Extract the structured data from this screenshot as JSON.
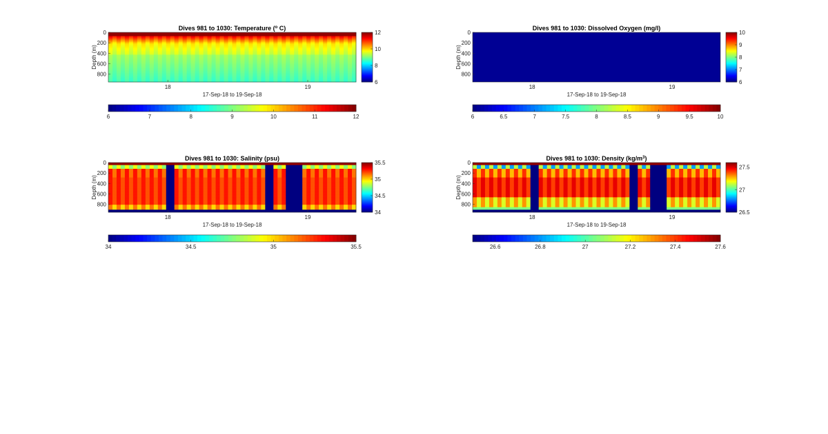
{
  "chart_data": [
    {
      "type": "heatmap",
      "title": "Dives 981 to 1030: Temperature (",
      "title_sup": "o",
      "title_end": " C)",
      "ylabel": "Depth (m)",
      "xlabel": "17-Sep-18 to 19-Sep-18",
      "x_ticks": [
        "18",
        "19"
      ],
      "y_ticks": [
        0,
        200,
        400,
        600,
        800
      ],
      "ylim": [
        0,
        950
      ],
      "colorbar_ticks": [
        6,
        8,
        10,
        12
      ],
      "hbar_ticks": [
        "6",
        "7",
        "8",
        "9",
        "10",
        "11",
        "12"
      ],
      "clim": [
        6,
        12
      ],
      "colormap": "jet",
      "columns": 52
    },
    {
      "type": "heatmap",
      "title": "Dives 981 to 1030: Dissolved Oxygen (mg/l)",
      "ylabel": "Depth (m)",
      "xlabel": "17-Sep-18 to 19-Sep-18",
      "x_ticks": [
        "18",
        "19"
      ],
      "y_ticks": [
        0,
        200,
        400,
        600,
        800
      ],
      "ylim": [
        0,
        950
      ],
      "colorbar_ticks": [
        6,
        7,
        8,
        9,
        10
      ],
      "hbar_ticks": [
        "6",
        "6.5",
        "7",
        "7.5",
        "8",
        "8.5",
        "9",
        "9.5",
        "10"
      ],
      "clim": [
        6,
        10
      ],
      "colormap": "jet",
      "fill_value": 6
    },
    {
      "type": "heatmap",
      "title": "Dives 981 to 1030: Salinity (psu)",
      "ylabel": "Depth (m)",
      "xlabel": "17-Sep-18 to 19-Sep-18",
      "x_ticks": [
        "18",
        "19"
      ],
      "y_ticks": [
        0,
        200,
        400,
        600,
        800
      ],
      "ylim": [
        0,
        950
      ],
      "colorbar_ticks": [
        34,
        34.5,
        35,
        35.5
      ],
      "hbar_ticks": [
        "34",
        "34.5",
        "35",
        "35.5"
      ],
      "clim": [
        34,
        35.5
      ],
      "colormap": "jet",
      "gap_columns": [
        12,
        33,
        37,
        39
      ]
    },
    {
      "type": "heatmap",
      "title": "Dives 981 to 1030: Density (kg/m",
      "title_sup": "3",
      "title_end": ")",
      "ylabel": "Depth (m)",
      "xlabel": "17-Sep-18 to 19-Sep-18",
      "x_ticks": [
        "18",
        "19"
      ],
      "y_ticks": [
        0,
        200,
        400,
        600,
        800
      ],
      "ylim": [
        0,
        950
      ],
      "colorbar_ticks": [
        26.5,
        27,
        27.5
      ],
      "hbar_ticks": [
        "26.6",
        "26.8",
        "27",
        "27.2",
        "27.4",
        "27.6"
      ],
      "clim": [
        26.5,
        27.6
      ],
      "colormap": "jet",
      "gap_columns": [
        12,
        33,
        37,
        39
      ]
    }
  ]
}
